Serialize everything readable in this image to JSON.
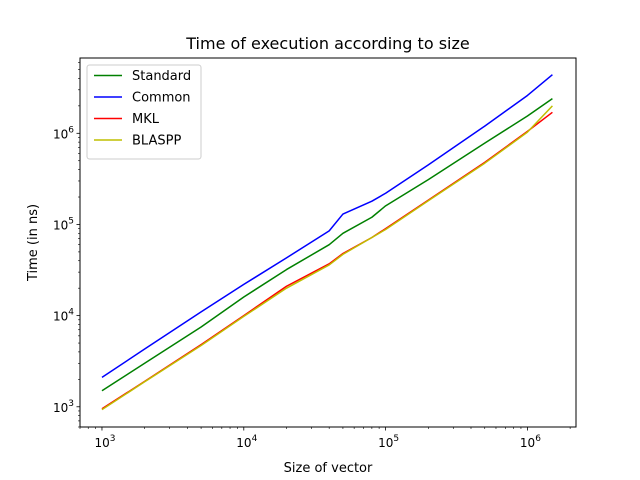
{
  "chart_data": {
    "type": "line",
    "title": "Time of execution according to size",
    "xlabel": "Size of vector",
    "ylabel": "Time (in ns)",
    "xscale": "log",
    "yscale": "log",
    "xlim": [
      700,
      2200000
    ],
    "ylim": [
      600,
      6700000
    ],
    "grid": false,
    "legend_position": "top-left",
    "x_ticks": [
      {
        "value": 1000,
        "base": "10",
        "exp": "3"
      },
      {
        "value": 10000,
        "base": "10",
        "exp": "4"
      },
      {
        "value": 100000,
        "base": "10",
        "exp": "5"
      },
      {
        "value": 1000000,
        "base": "10",
        "exp": "6"
      }
    ],
    "y_ticks": [
      {
        "value": 1000,
        "base": "10",
        "exp": "3"
      },
      {
        "value": 10000,
        "base": "10",
        "exp": "4"
      },
      {
        "value": 100000,
        "base": "10",
        "exp": "5"
      },
      {
        "value": 1000000,
        "base": "10",
        "exp": "6"
      }
    ],
    "series": [
      {
        "name": "Standard",
        "color": "#008000",
        "x": [
          1000,
          2000,
          5000,
          10000,
          20000,
          40000,
          50000,
          80000,
          100000,
          200000,
          500000,
          1000000,
          1500000
        ],
        "y": [
          1500,
          3000,
          7500,
          16000,
          32000,
          60000,
          80000,
          120000,
          160000,
          310000,
          780000,
          1550000,
          2400000
        ]
      },
      {
        "name": "Common",
        "color": "#0000ff",
        "x": [
          1000,
          2000,
          5000,
          10000,
          20000,
          40000,
          50000,
          80000,
          100000,
          200000,
          500000,
          1000000,
          1500000
        ],
        "y": [
          2100,
          4300,
          11000,
          22000,
          43000,
          85000,
          130000,
          180000,
          220000,
          450000,
          1200000,
          2600000,
          4400000
        ]
      },
      {
        "name": "MKL",
        "color": "#ff0000",
        "x": [
          1000,
          2000,
          5000,
          10000,
          20000,
          40000,
          50000,
          80000,
          100000,
          200000,
          500000,
          1000000,
          1500000
        ],
        "y": [
          950,
          1900,
          4800,
          10000,
          21000,
          37000,
          48000,
          72000,
          90000,
          185000,
          480000,
          1050000,
          1700000
        ]
      },
      {
        "name": "BLASPP",
        "color": "#bfbf00",
        "x": [
          1000,
          2000,
          5000,
          10000,
          20000,
          40000,
          50000,
          80000,
          100000,
          200000,
          500000,
          1000000,
          1500000
        ],
        "y": [
          930,
          1880,
          4700,
          9800,
          20000,
          36000,
          47000,
          72000,
          88000,
          182000,
          470000,
          1030000,
          2000000
        ]
      }
    ]
  }
}
